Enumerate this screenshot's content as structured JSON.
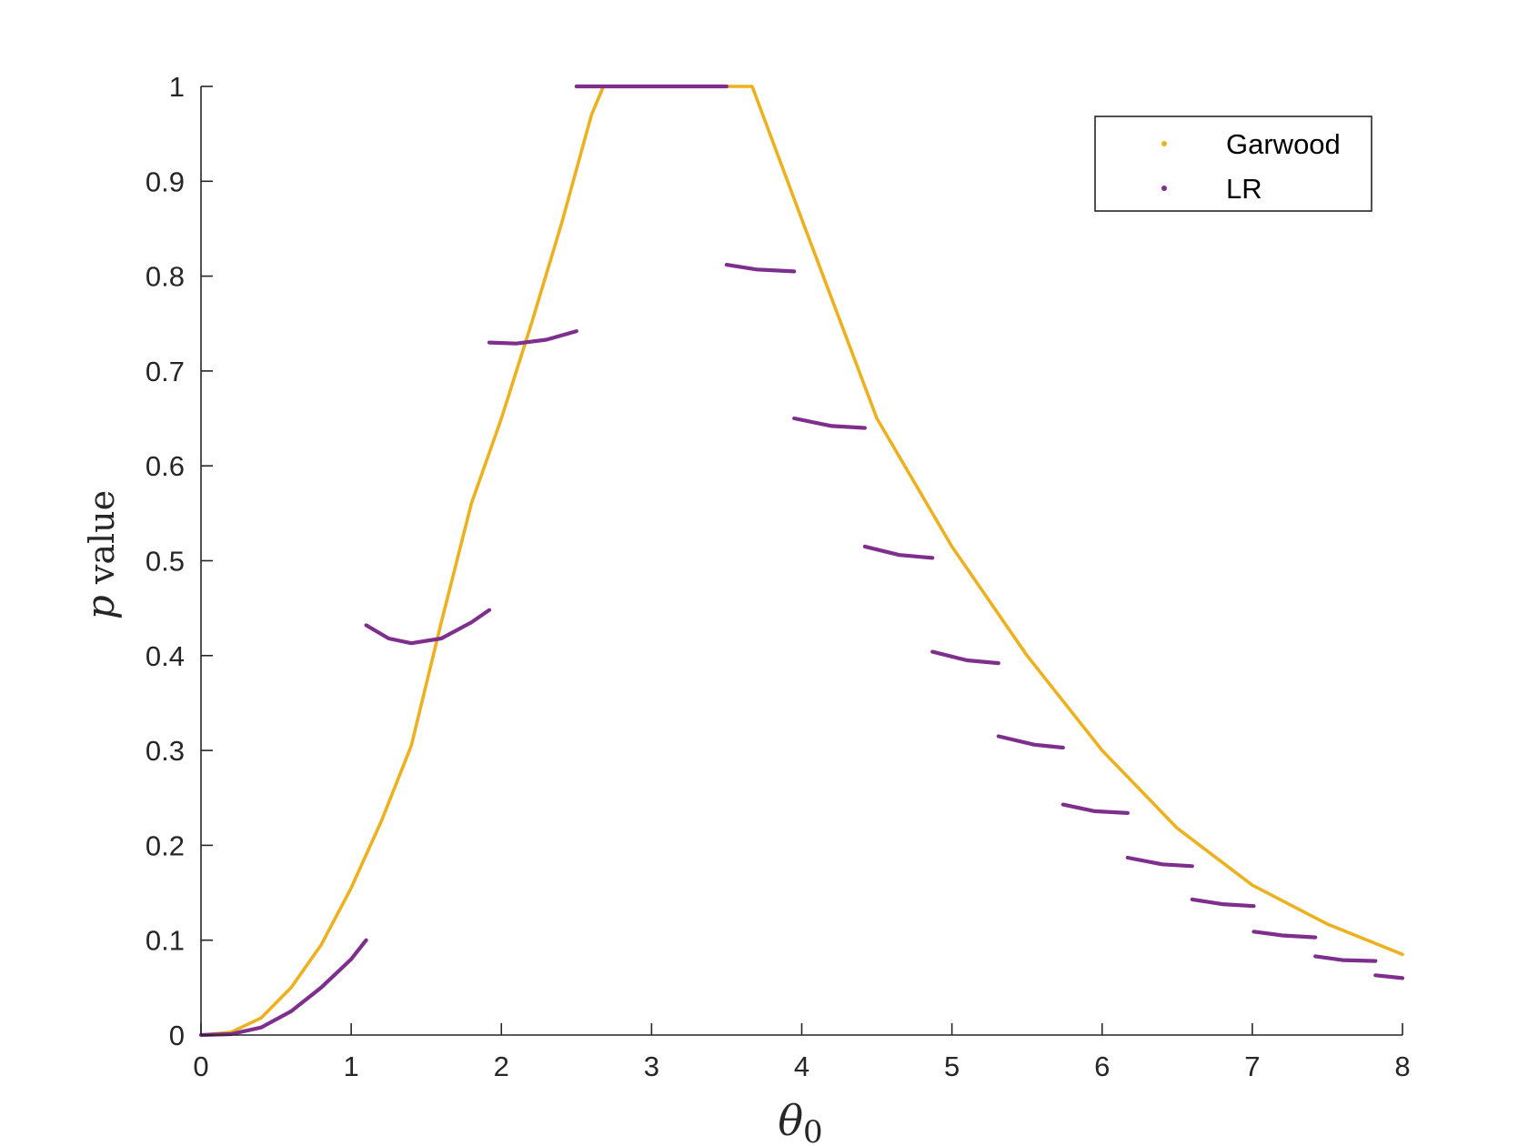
{
  "chart_data": {
    "type": "line",
    "xlim": [
      0,
      8
    ],
    "ylim": [
      0,
      1
    ],
    "xticks": [
      0,
      1,
      2,
      3,
      4,
      5,
      6,
      7,
      8
    ],
    "yticks": [
      0,
      0.1,
      0.2,
      0.3,
      0.4,
      0.5,
      0.6,
      0.7,
      0.8,
      0.9,
      1
    ],
    "ylabel_italic": "p",
    "ylabel_rest": " value",
    "xlabel_symbol": "θ",
    "xlabel_subscript": "0",
    "grid": false,
    "legend_position": "top-right",
    "legend": [
      "Garwood",
      "LR"
    ],
    "series": [
      {
        "name": "Garwood",
        "color": "#EDB120",
        "segments": [
          [
            [
              0,
              0
            ],
            [
              0.2,
              0.003
            ],
            [
              0.4,
              0.018
            ],
            [
              0.6,
              0.05
            ],
            [
              0.8,
              0.095
            ],
            [
              1.0,
              0.155
            ],
            [
              1.2,
              0.225
            ],
            [
              1.4,
              0.305
            ],
            [
              1.6,
              0.435
            ],
            [
              1.8,
              0.56
            ],
            [
              2.0,
              0.65
            ],
            [
              2.2,
              0.75
            ],
            [
              2.4,
              0.855
            ],
            [
              2.6,
              0.97
            ],
            [
              2.68,
              1
            ],
            [
              3.5,
              1
            ],
            [
              3.67,
              1
            ],
            [
              4.0,
              0.86
            ],
            [
              4.5,
              0.65
            ],
            [
              5.0,
              0.515
            ],
            [
              5.5,
              0.4
            ],
            [
              6.0,
              0.3
            ],
            [
              6.5,
              0.218
            ],
            [
              7.0,
              0.158
            ],
            [
              7.5,
              0.117
            ],
            [
              8.0,
              0.085
            ]
          ]
        ]
      },
      {
        "name": "LR",
        "color": "#7E2F8E",
        "segments": [
          [
            [
              0,
              0
            ],
            [
              0.2,
              0.001
            ],
            [
              0.4,
              0.008
            ],
            [
              0.6,
              0.025
            ],
            [
              0.8,
              0.05
            ],
            [
              1.0,
              0.08
            ],
            [
              1.1,
              0.1
            ]
          ],
          [
            [
              1.1,
              0.432
            ],
            [
              1.25,
              0.418
            ],
            [
              1.4,
              0.413
            ],
            [
              1.6,
              0.418
            ],
            [
              1.8,
              0.435
            ],
            [
              1.92,
              0.448
            ]
          ],
          [
            [
              1.92,
              0.73
            ],
            [
              2.1,
              0.729
            ],
            [
              2.3,
              0.733
            ],
            [
              2.5,
              0.742
            ]
          ],
          [
            [
              2.5,
              1
            ],
            [
              3.5,
              1
            ]
          ],
          [
            [
              3.5,
              0.812
            ],
            [
              3.7,
              0.807
            ],
            [
              3.95,
              0.805
            ]
          ],
          [
            [
              3.95,
              0.65
            ],
            [
              4.2,
              0.642
            ],
            [
              4.42,
              0.64
            ]
          ],
          [
            [
              4.42,
              0.515
            ],
            [
              4.65,
              0.506
            ],
            [
              4.87,
              0.503
            ]
          ],
          [
            [
              4.87,
              0.404
            ],
            [
              5.1,
              0.395
            ],
            [
              5.31,
              0.392
            ]
          ],
          [
            [
              5.31,
              0.315
            ],
            [
              5.55,
              0.306
            ],
            [
              5.74,
              0.303
            ]
          ],
          [
            [
              5.74,
              0.243
            ],
            [
              5.95,
              0.236
            ],
            [
              6.17,
              0.234
            ]
          ],
          [
            [
              6.17,
              0.187
            ],
            [
              6.4,
              0.18
            ],
            [
              6.6,
              0.178
            ]
          ],
          [
            [
              6.6,
              0.143
            ],
            [
              6.8,
              0.138
            ],
            [
              7.01,
              0.136
            ]
          ],
          [
            [
              7.01,
              0.109
            ],
            [
              7.2,
              0.105
            ],
            [
              7.42,
              0.103
            ]
          ],
          [
            [
              7.42,
              0.083
            ],
            [
              7.6,
              0.079
            ],
            [
              7.82,
              0.078
            ]
          ],
          [
            [
              7.82,
              0.063
            ],
            [
              8.0,
              0.06
            ]
          ]
        ]
      }
    ]
  }
}
